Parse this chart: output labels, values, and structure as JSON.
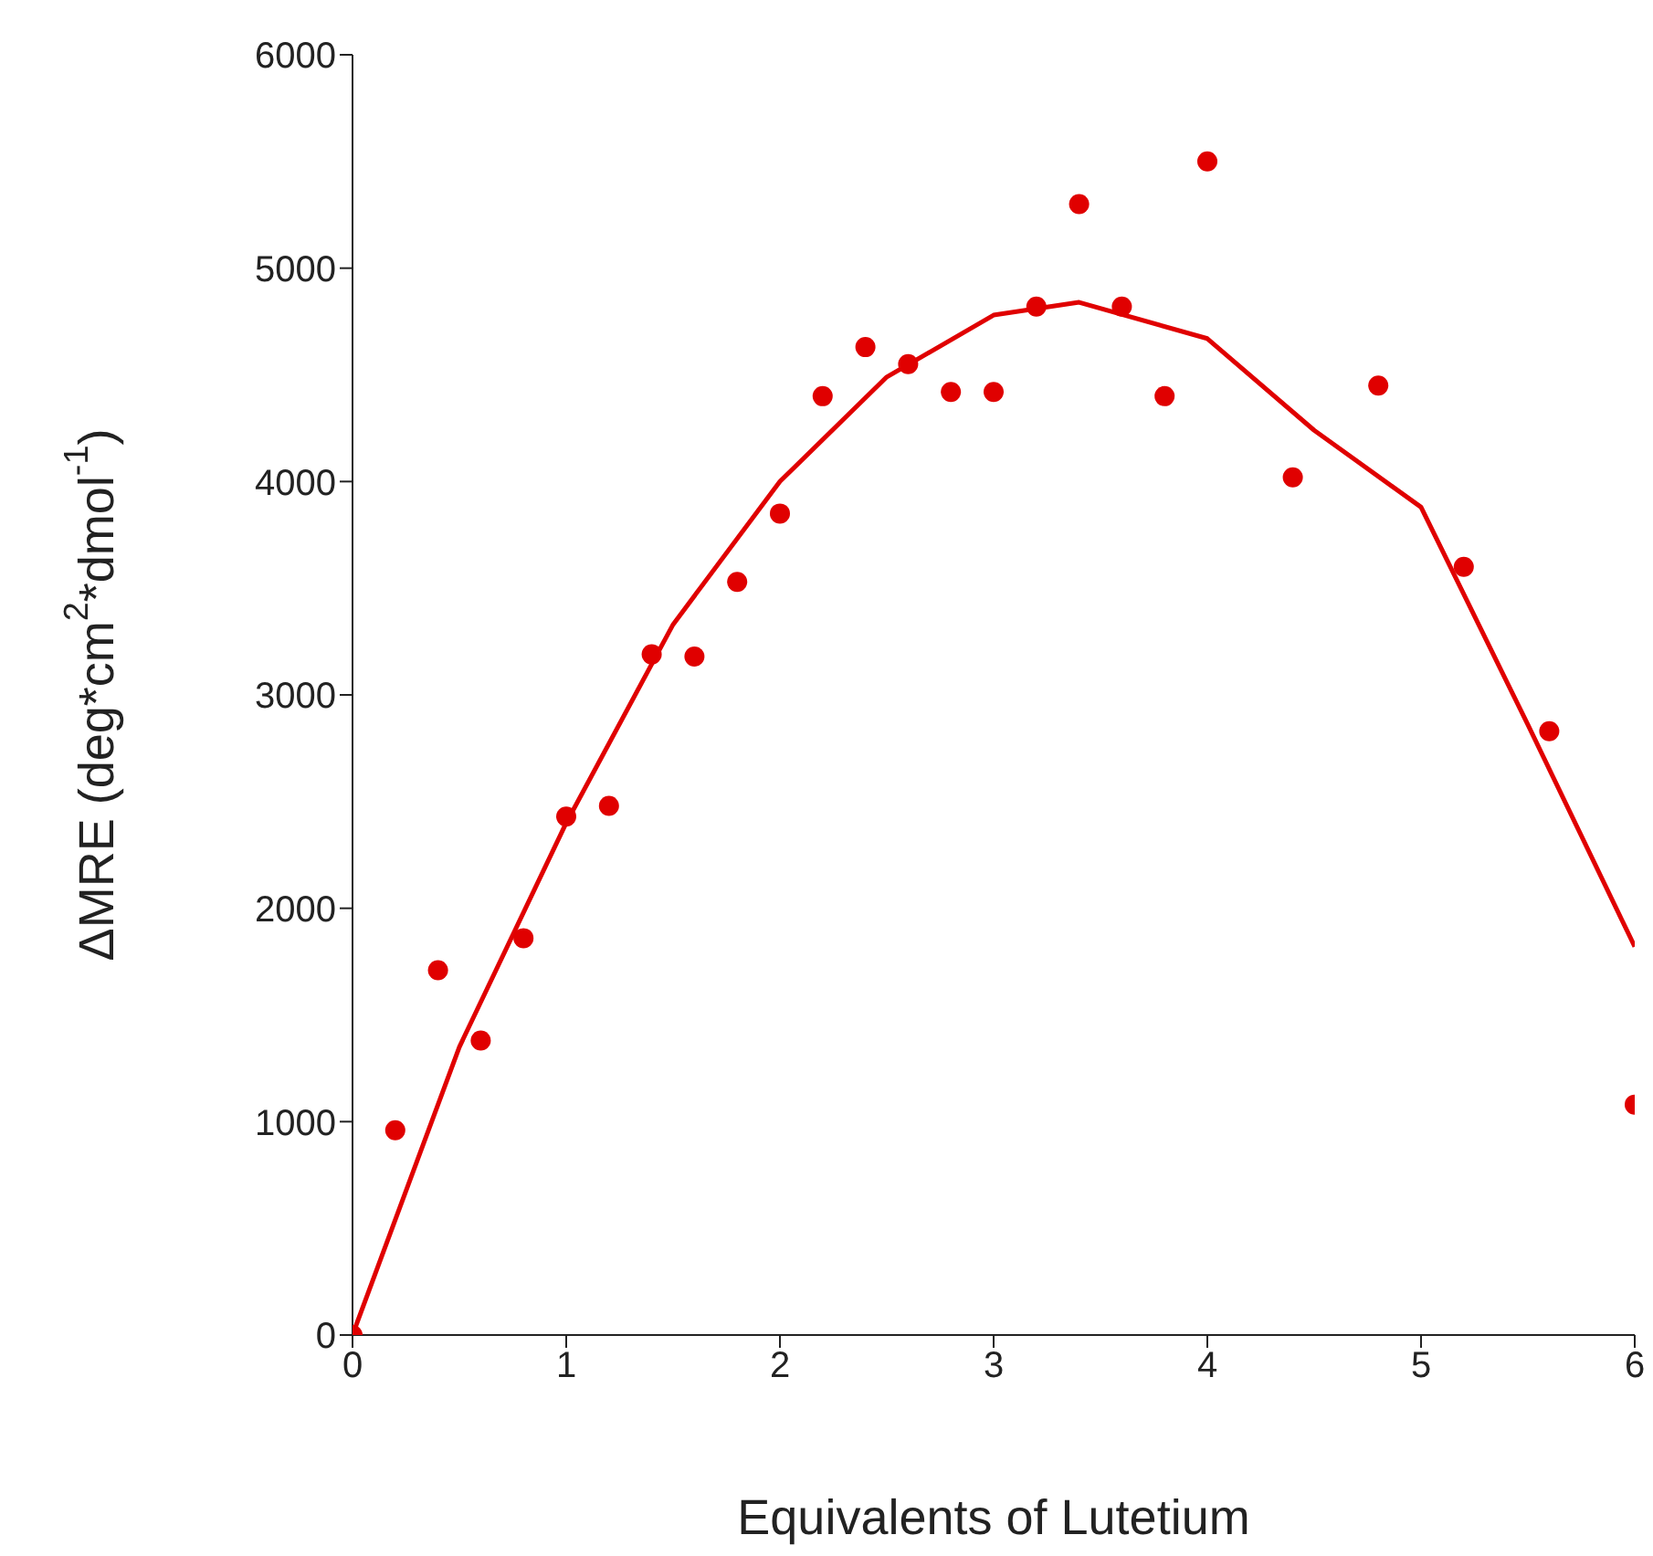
{
  "chart_data": {
    "type": "scatter",
    "xlabel": "Equivalents of Lutetium",
    "ylabel": "ΔMRE (deg*cm$^{2}$*dmol$^{-1}$)",
    "xlim": [
      0,
      6
    ],
    "xticks": [
      0,
      1,
      2,
      3,
      4,
      5,
      6
    ],
    "ylim": [
      0,
      6000
    ],
    "yticks": [
      0,
      1000,
      2000,
      3000,
      4000,
      5000,
      6000
    ],
    "marker": "circle",
    "series": [
      {
        "color": "#e00000",
        "x": [
          0,
          0.2,
          0.4,
          0.6,
          0.8,
          1.0,
          1.2,
          1.4,
          1.6,
          1.8,
          2.0,
          2.2,
          2.4,
          2.6,
          2.8,
          3.0,
          3.2,
          3.4,
          3.6,
          3.8,
          4.0,
          4.4,
          4.8,
          5.2,
          5.6,
          6.0
        ],
        "values": [
          0,
          960,
          1710,
          1380,
          1860,
          2430,
          2480,
          3190,
          3180,
          3530,
          3850,
          4400,
          4630,
          4550,
          4420,
          4420,
          4820,
          5300,
          4820,
          4400,
          5500,
          4020,
          4450,
          3600,
          2830,
          1080
        ]
      },
      {
        "type": "line",
        "color": "#e00000",
        "marker": "none",
        "line_style": "solid",
        "x": [
          0,
          0.5,
          1,
          1.5,
          2,
          2.5,
          3,
          3.4,
          4,
          4.5,
          5,
          5.5,
          6
        ],
        "values": [
          0,
          1350,
          2400,
          3330,
          4000,
          4490,
          4780,
          4840,
          4670,
          4240,
          3880,
          2860,
          1820
        ]
      }
    ]
  }
}
